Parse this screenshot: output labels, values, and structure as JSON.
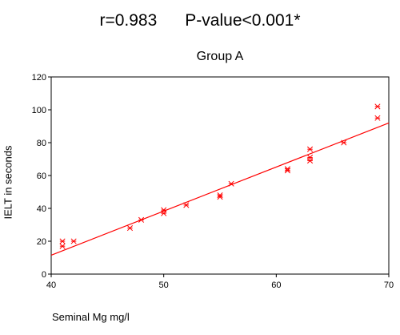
{
  "header": {
    "stats_line": "r=0.983      P-value<0.001*"
  },
  "chart_data": {
    "type": "scatter",
    "title": "Group A",
    "xlabel": "Seminal Mg mg/l",
    "ylabel": "IELT in seconds",
    "xlim": [
      40,
      70
    ],
    "ylim": [
      0,
      120
    ],
    "xticks": [
      40,
      50,
      60,
      70
    ],
    "yticks": [
      0,
      20,
      40,
      60,
      80,
      100,
      120
    ],
    "marker": "asterisk",
    "color": "#ff0000",
    "grid": false,
    "points": [
      {
        "x": 41,
        "y": 20
      },
      {
        "x": 41,
        "y": 17
      },
      {
        "x": 42,
        "y": 20
      },
      {
        "x": 47,
        "y": 28
      },
      {
        "x": 48,
        "y": 33
      },
      {
        "x": 50,
        "y": 39
      },
      {
        "x": 50,
        "y": 37
      },
      {
        "x": 52,
        "y": 42
      },
      {
        "x": 55,
        "y": 48
      },
      {
        "x": 55,
        "y": 47
      },
      {
        "x": 56,
        "y": 55
      },
      {
        "x": 61,
        "y": 64
      },
      {
        "x": 61,
        "y": 63
      },
      {
        "x": 63,
        "y": 76
      },
      {
        "x": 63,
        "y": 71
      },
      {
        "x": 63,
        "y": 69
      },
      {
        "x": 66,
        "y": 80
      },
      {
        "x": 69,
        "y": 102
      },
      {
        "x": 69,
        "y": 95
      }
    ],
    "fit_line": {
      "x": [
        40,
        70
      ],
      "y": [
        11.5,
        92
      ]
    }
  }
}
